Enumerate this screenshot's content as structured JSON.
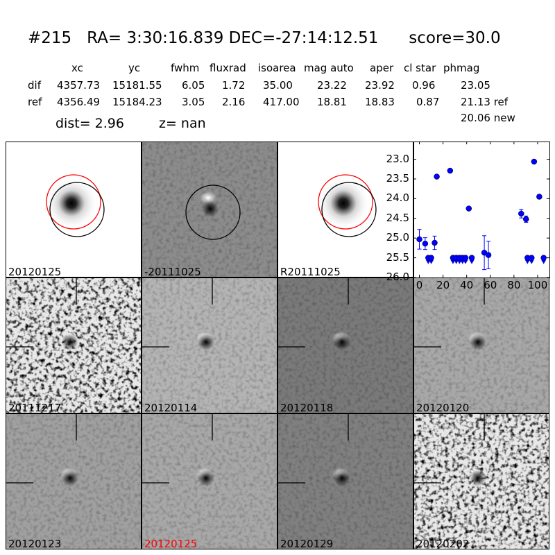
{
  "title": {
    "id": "#215",
    "ra": "RA= 3:30:16.839",
    "dec": "DEC=-27:14:12.51",
    "score": "score=30.0"
  },
  "table": {
    "headers": [
      "xc",
      "yc",
      "fwhm",
      "fluxrad",
      "isoarea",
      "mag auto",
      "aper",
      "cl star",
      "phmag"
    ],
    "rows": [
      {
        "label": "dif",
        "values": [
          "4357.73",
          "15181.55",
          "6.05",
          "1.72",
          "35.00",
          "23.22",
          "23.92",
          "0.96",
          "23.05"
        ]
      },
      {
        "label": "ref",
        "values": [
          "4356.49",
          "15184.23",
          "3.05",
          "2.16",
          "417.00",
          "18.81",
          "18.83",
          "0.87",
          "21.13 ref"
        ]
      }
    ],
    "extra": "20.06 new",
    "dist": "dist=  2.96",
    "z": "z=   nan"
  },
  "stamps": [
    {
      "label": "20120125",
      "bg": "#ffffff",
      "kind": "ref"
    },
    {
      "label": "-20111025",
      "bg": "#8c8c8c",
      "kind": "diff"
    },
    {
      "label": "R20111025",
      "bg": "#ffffff",
      "kind": "ref"
    },
    {
      "label": "20111217",
      "bg": "#7f7f7f",
      "kind": "noisy"
    },
    {
      "label": "20120114",
      "bg": "#b4b4b4",
      "kind": "dipole"
    },
    {
      "label": "20120118",
      "bg": "#7a7a7a",
      "kind": "dipole"
    },
    {
      "label": "20120120",
      "bg": "#a8a8a8",
      "kind": "dipole"
    },
    {
      "label": "20120123",
      "bg": "#a0a0a0",
      "kind": "dipole"
    },
    {
      "label": "20120125",
      "bg": "#a8a8a8",
      "kind": "dipole",
      "color": "#ff0000"
    },
    {
      "label": "20120129",
      "bg": "#808080",
      "kind": "dipole"
    },
    {
      "label": "20120202",
      "bg": "#8a8a8a",
      "kind": "noisy"
    }
  ],
  "chart_data": {
    "type": "scatter",
    "xlim": [
      -5,
      110
    ],
    "ylim": [
      26.0,
      22.55
    ],
    "y_inverted": true,
    "xticks": [
      0,
      20,
      40,
      60,
      80,
      100
    ],
    "yticks": [
      23.0,
      23.5,
      24.0,
      24.5,
      25.0,
      25.5,
      26.0
    ],
    "color": "#0000ff",
    "detections": [
      {
        "x": 0,
        "y": 25.03,
        "err": 0.25
      },
      {
        "x": 4.9,
        "y": 25.14,
        "err": 0.15
      },
      {
        "x": 12.9,
        "y": 25.12,
        "err": 0.17
      },
      {
        "x": 14.7,
        "y": 23.44,
        "err": 0.0
      },
      {
        "x": 26,
        "y": 23.29,
        "err": 0.0
      },
      {
        "x": 41.8,
        "y": 24.25,
        "err": 0.04
      },
      {
        "x": 54.9,
        "y": 25.37,
        "err": 0.43
      },
      {
        "x": 58.4,
        "y": 25.43,
        "err": 0.35
      },
      {
        "x": 86.1,
        "y": 24.38,
        "err": 0.11
      },
      {
        "x": 90.2,
        "y": 24.52,
        "err": 0.08
      },
      {
        "x": 97,
        "y": 23.06,
        "err": 0.0
      },
      {
        "x": 101.4,
        "y": 23.95,
        "err": 0.05
      }
    ],
    "upper_limits": [
      {
        "x": 7.5,
        "y": 25.5
      },
      {
        "x": 10,
        "y": 25.5
      },
      {
        "x": 28.4,
        "y": 25.5
      },
      {
        "x": 31.2,
        "y": 25.5
      },
      {
        "x": 33.9,
        "y": 25.5
      },
      {
        "x": 36.5,
        "y": 25.5
      },
      {
        "x": 39,
        "y": 25.5
      },
      {
        "x": 44.3,
        "y": 25.5
      },
      {
        "x": 91.4,
        "y": 25.5
      },
      {
        "x": 94.9,
        "y": 25.5
      },
      {
        "x": 105.1,
        "y": 25.5
      }
    ]
  }
}
